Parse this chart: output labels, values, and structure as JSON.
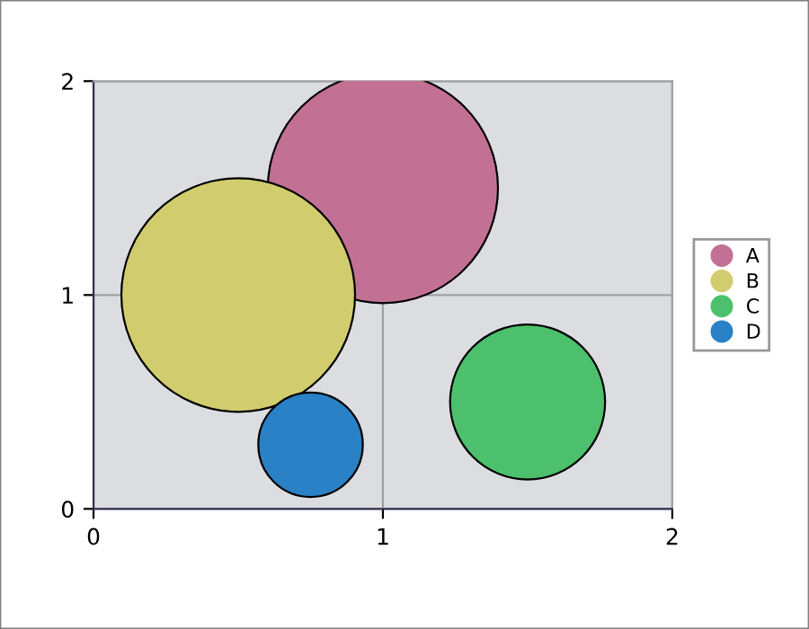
{
  "chart_data": {
    "type": "bubble",
    "series": [
      {
        "name": "A",
        "color": "#c37095",
        "x": [
          1.0
        ],
        "values": [
          1.5
        ],
        "sizes": [
          0.97
        ]
      },
      {
        "name": "B",
        "color": "#d1cd6e",
        "x": [
          0.5
        ],
        "values": [
          1.0
        ],
        "sizes": [
          1.0
        ]
      },
      {
        "name": "C",
        "color": "#4cc06c",
        "x": [
          1.5
        ],
        "values": [
          0.5
        ],
        "sizes": [
          0.44
        ]
      },
      {
        "name": "D",
        "color": "#2a81c5",
        "x": [
          0.75
        ],
        "values": [
          0.3
        ],
        "sizes": [
          0.2
        ]
      }
    ],
    "xlim": [
      0,
      2
    ],
    "ylim": [
      0,
      2
    ],
    "xticks": [
      0,
      1,
      2
    ],
    "yticks": [
      0,
      1,
      2
    ],
    "grid": true,
    "legend": "right",
    "marker": "circle"
  }
}
